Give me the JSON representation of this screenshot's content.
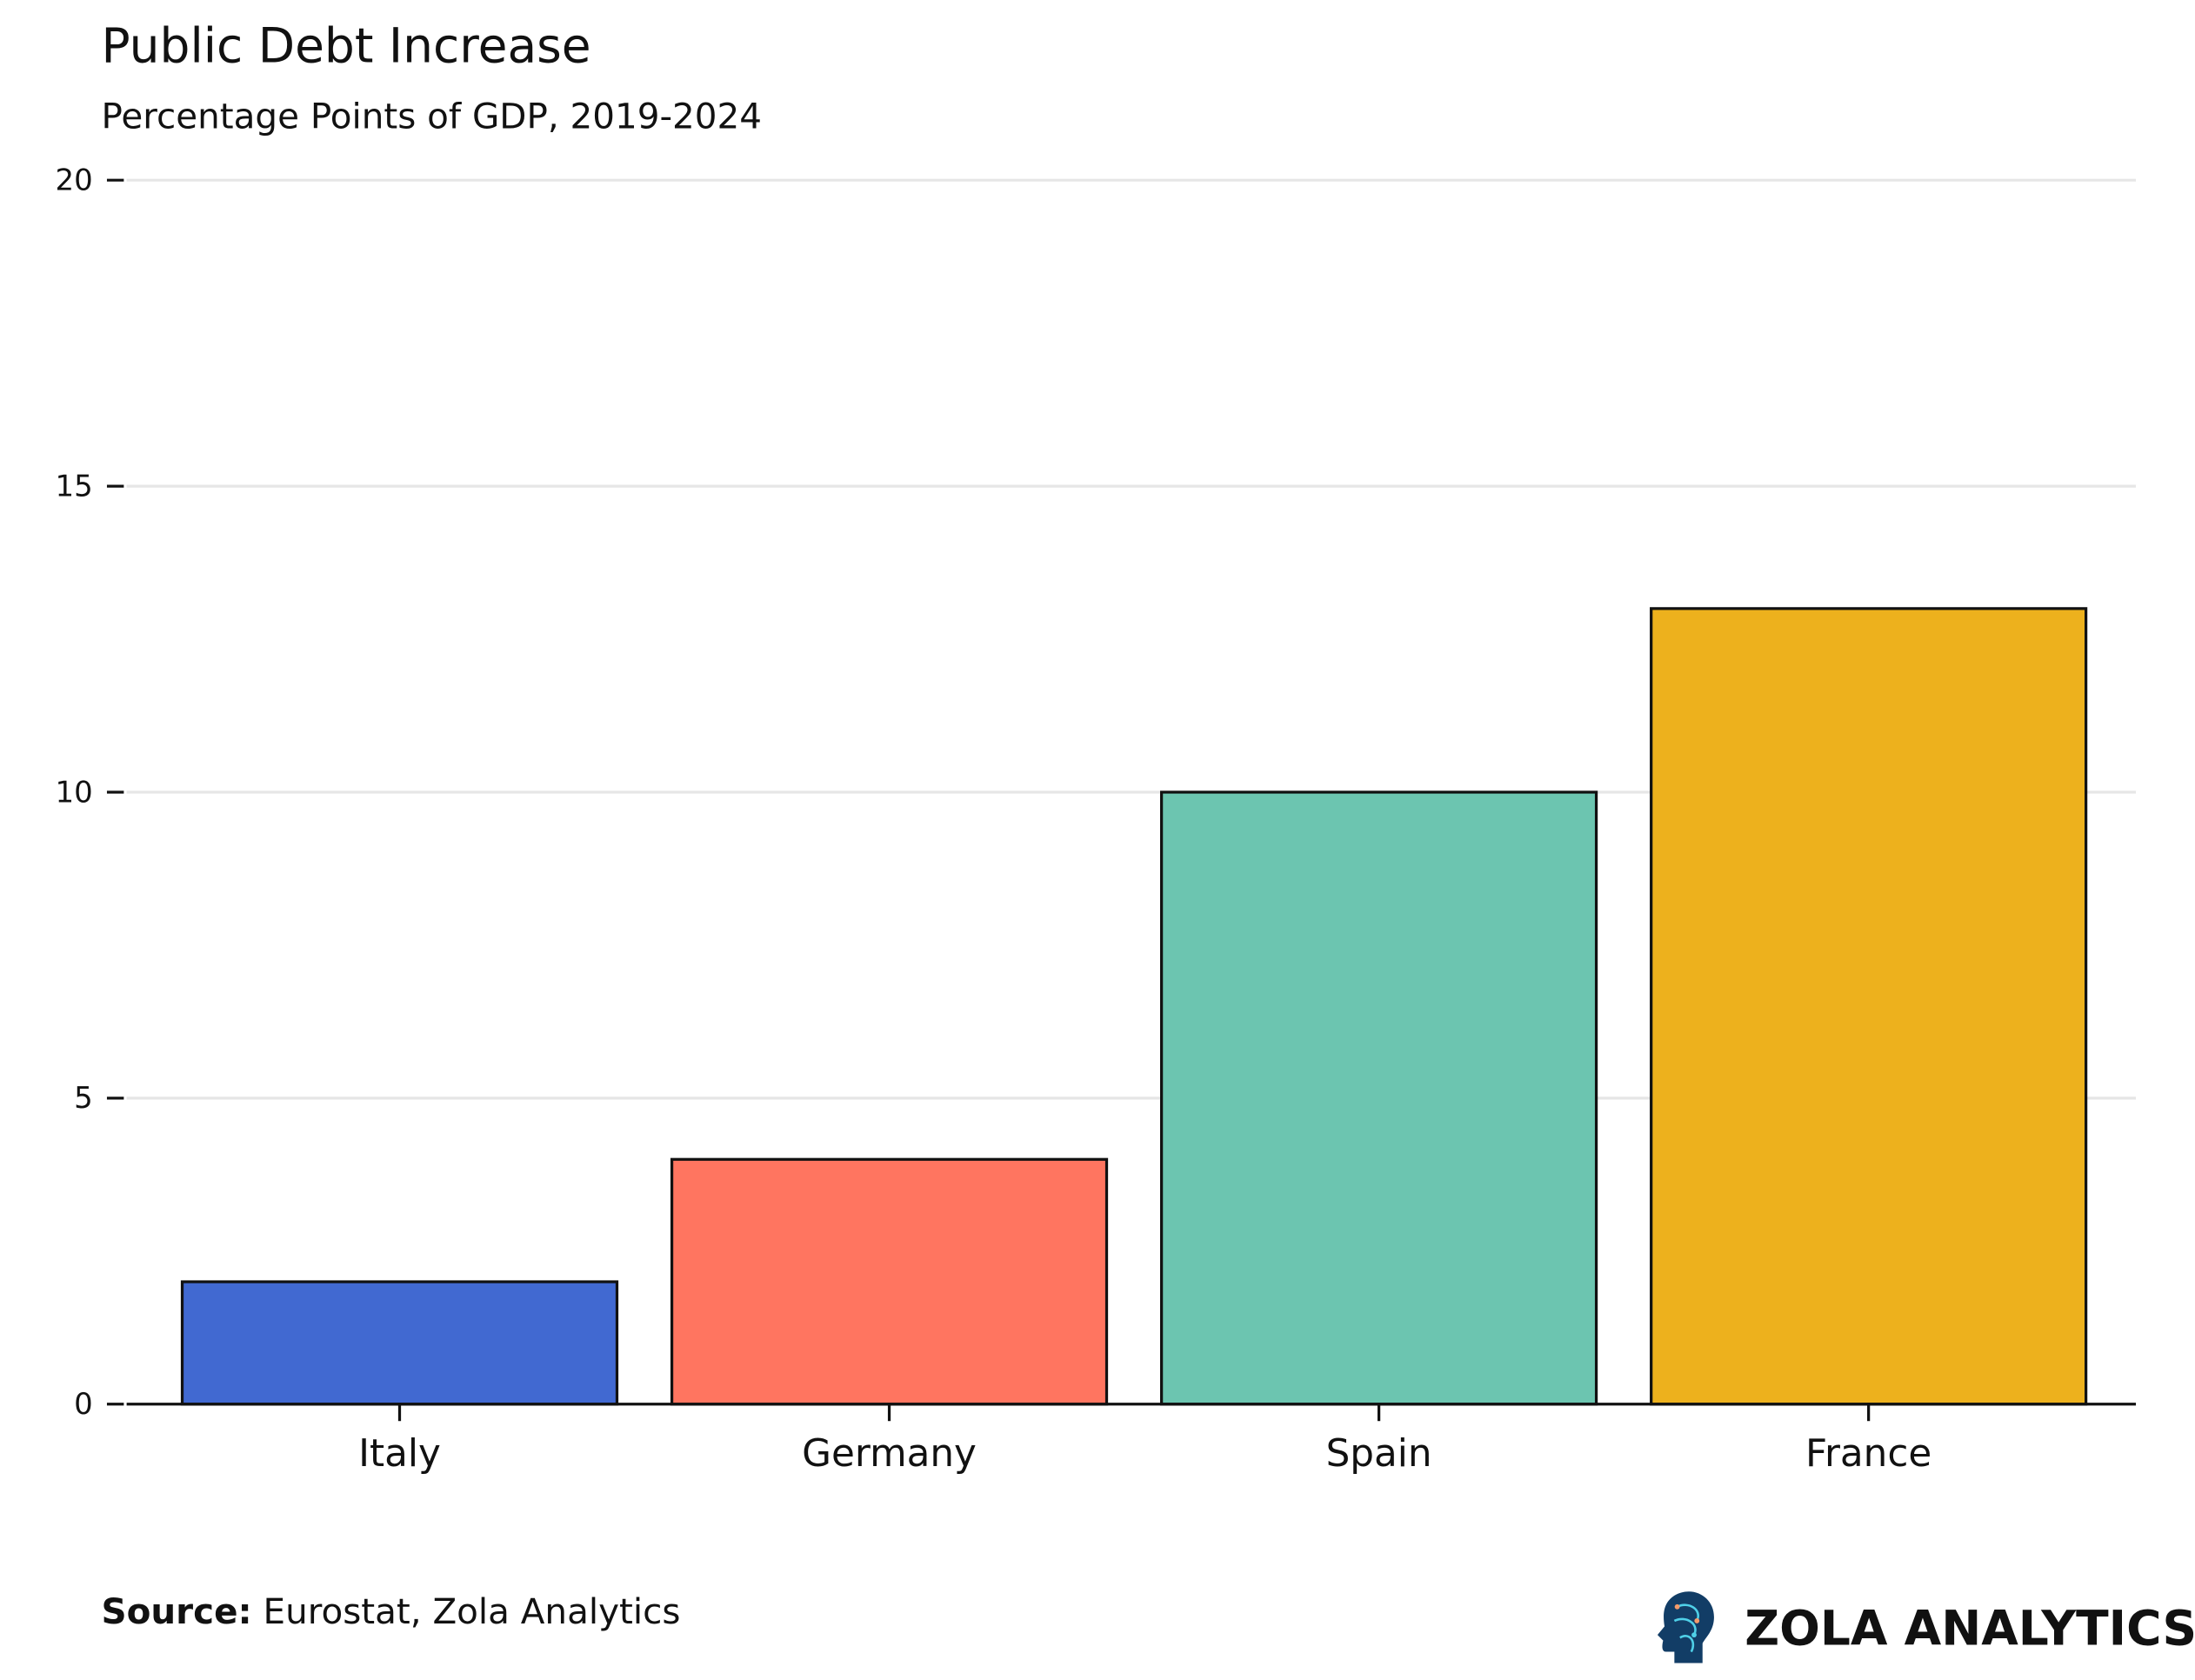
{
  "chart_data": {
    "type": "bar",
    "title": "Public Debt Increase",
    "subtitle": "Percentage Points of GDP, 2019-2024",
    "categories": [
      "Italy",
      "Germany",
      "Spain",
      "France"
    ],
    "values": [
      2,
      4,
      10,
      13
    ],
    "colors": [
      "#4169d1",
      "#ff7560",
      "#6cc5b0",
      "#edb11d"
    ],
    "xlabel": "",
    "ylabel": "",
    "ylim": [
      0,
      20
    ],
    "yticks": [
      "0",
      "5",
      "10",
      "15",
      "20"
    ],
    "grid": true,
    "legend": "none"
  },
  "footer": {
    "source_label": "Source:",
    "source_text": " Eurostat, Zola Analytics",
    "brand": "ZOLA ANALYTICS",
    "brand_icon": "brain-head-icon"
  }
}
